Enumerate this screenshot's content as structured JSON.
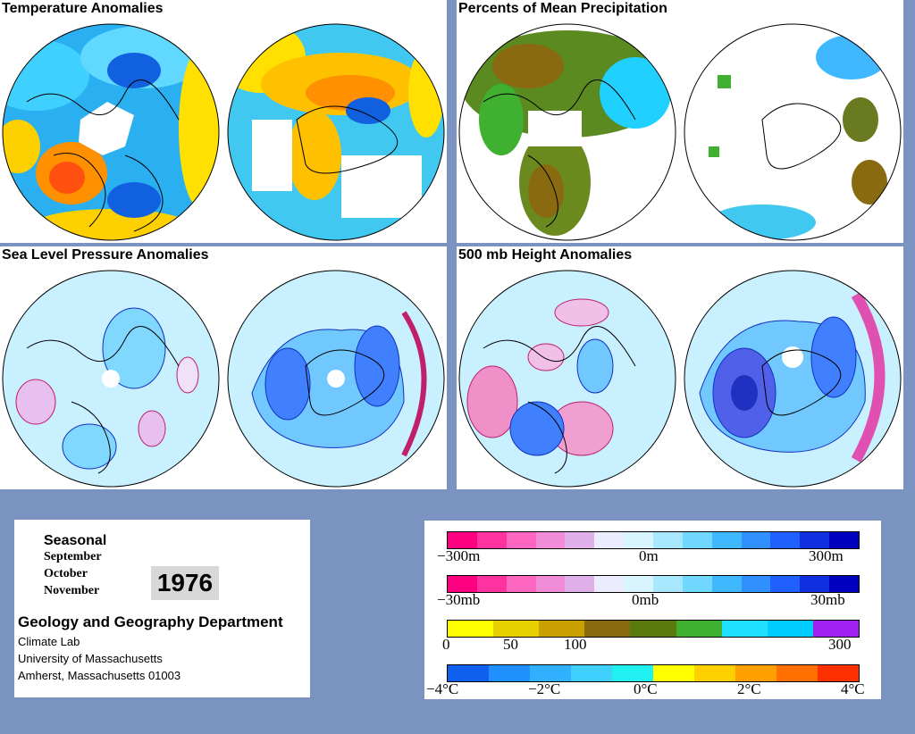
{
  "panels": {
    "temperature": {
      "title": "Temperature Anomalies"
    },
    "precipitation": {
      "title": "Percents of Mean Precipitation"
    },
    "slp": {
      "title": "Sea Level Pressure Anomalies"
    },
    "height500": {
      "title": "500 mb Height Anomalies"
    }
  },
  "info": {
    "season": "Seasonal",
    "months": [
      "September",
      "October",
      "November"
    ],
    "year": "1976",
    "department": "Geology and Geography Department",
    "address": [
      "Climate Lab",
      "University of Massachusetts",
      "Amherst, Massachusetts 01003"
    ]
  },
  "legend": {
    "height_scale": {
      "labels": [
        "−300m",
        "0m",
        "300m"
      ],
      "colors": [
        "#ff0080",
        "#ff33a0",
        "#ff66c0",
        "#f08cd8",
        "#e0b0ea",
        "#ececff",
        "#d8f4ff",
        "#a8e8ff",
        "#70d8ff",
        "#40b8ff",
        "#3090ff",
        "#2060ff",
        "#1030e0",
        "#0000c0"
      ]
    },
    "pressure_scale": {
      "labels": [
        "−30mb",
        "0mb",
        "30mb"
      ],
      "colors": [
        "#ff0080",
        "#ff33a0",
        "#ff66c0",
        "#f08cd8",
        "#e0b0ea",
        "#ececff",
        "#d8f4ff",
        "#a8e8ff",
        "#70d8ff",
        "#40b8ff",
        "#3090ff",
        "#2060ff",
        "#1030e0",
        "#0000c0"
      ]
    },
    "precip_scale": {
      "labels": [
        "0",
        "50",
        "100",
        "300"
      ],
      "colors": [
        "#ffff00",
        "#e8d000",
        "#c8a000",
        "#8a6a10",
        "#5a7a10",
        "#40b030",
        "#20e0ff",
        "#00ccff",
        "#a020f0"
      ]
    },
    "temp_scale": {
      "labels": [
        "−4°C",
        "−2°C",
        "0°C",
        "2°C",
        "4°C"
      ],
      "colors": [
        "#1060f0",
        "#2090ff",
        "#30b0ff",
        "#40d0ff",
        "#20f0f0",
        "#ffff00",
        "#ffd000",
        "#ffa000",
        "#ff7000",
        "#ff3000"
      ]
    }
  }
}
